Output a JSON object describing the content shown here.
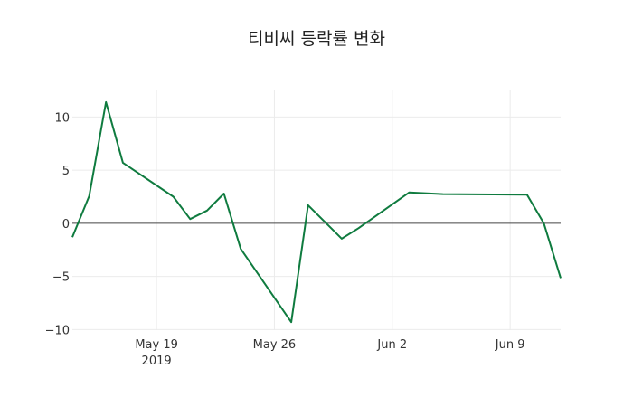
{
  "chart_data": {
    "type": "line",
    "title": "티비씨 등락률 변화",
    "xlabel": "",
    "ylabel": "",
    "x": [
      "2019-05-14",
      "2019-05-15",
      "2019-05-16",
      "2019-05-17",
      "2019-05-20",
      "2019-05-21",
      "2019-05-22",
      "2019-05-23",
      "2019-05-24",
      "2019-05-27",
      "2019-05-28",
      "2019-05-30",
      "2019-05-31",
      "2019-06-03",
      "2019-06-05",
      "2019-06-10",
      "2019-06-11",
      "2019-06-12"
    ],
    "series": [
      {
        "name": "등락률",
        "color": "#0f7b3f",
        "values": [
          -1.3,
          2.55,
          11.4,
          5.7,
          2.5,
          0.4,
          1.2,
          2.8,
          -2.4,
          -9.3,
          1.7,
          -1.45,
          -0.45,
          2.9,
          2.75,
          2.7,
          0.0,
          -5.15
        ]
      }
    ],
    "xrange": [
      "2019-05-14",
      "2019-06-12"
    ],
    "ylim": [
      -10.05,
      12.5
    ],
    "x_ticks": [
      {
        "date": "2019-05-19",
        "label": "May 19",
        "sublabel": "2019"
      },
      {
        "date": "2019-05-26",
        "label": "May 26"
      },
      {
        "date": "2019-06-02",
        "label": "Jun 2"
      },
      {
        "date": "2019-06-09",
        "label": "Jun 9"
      }
    ],
    "y_ticks": [
      {
        "value": 10,
        "label": "10"
      },
      {
        "value": 5,
        "label": "5"
      },
      {
        "value": 0,
        "label": "0"
      },
      {
        "value": -5,
        "label": "−5"
      },
      {
        "value": -10,
        "label": "−10"
      }
    ],
    "grid": true,
    "zero_line": true,
    "legend": "none"
  }
}
